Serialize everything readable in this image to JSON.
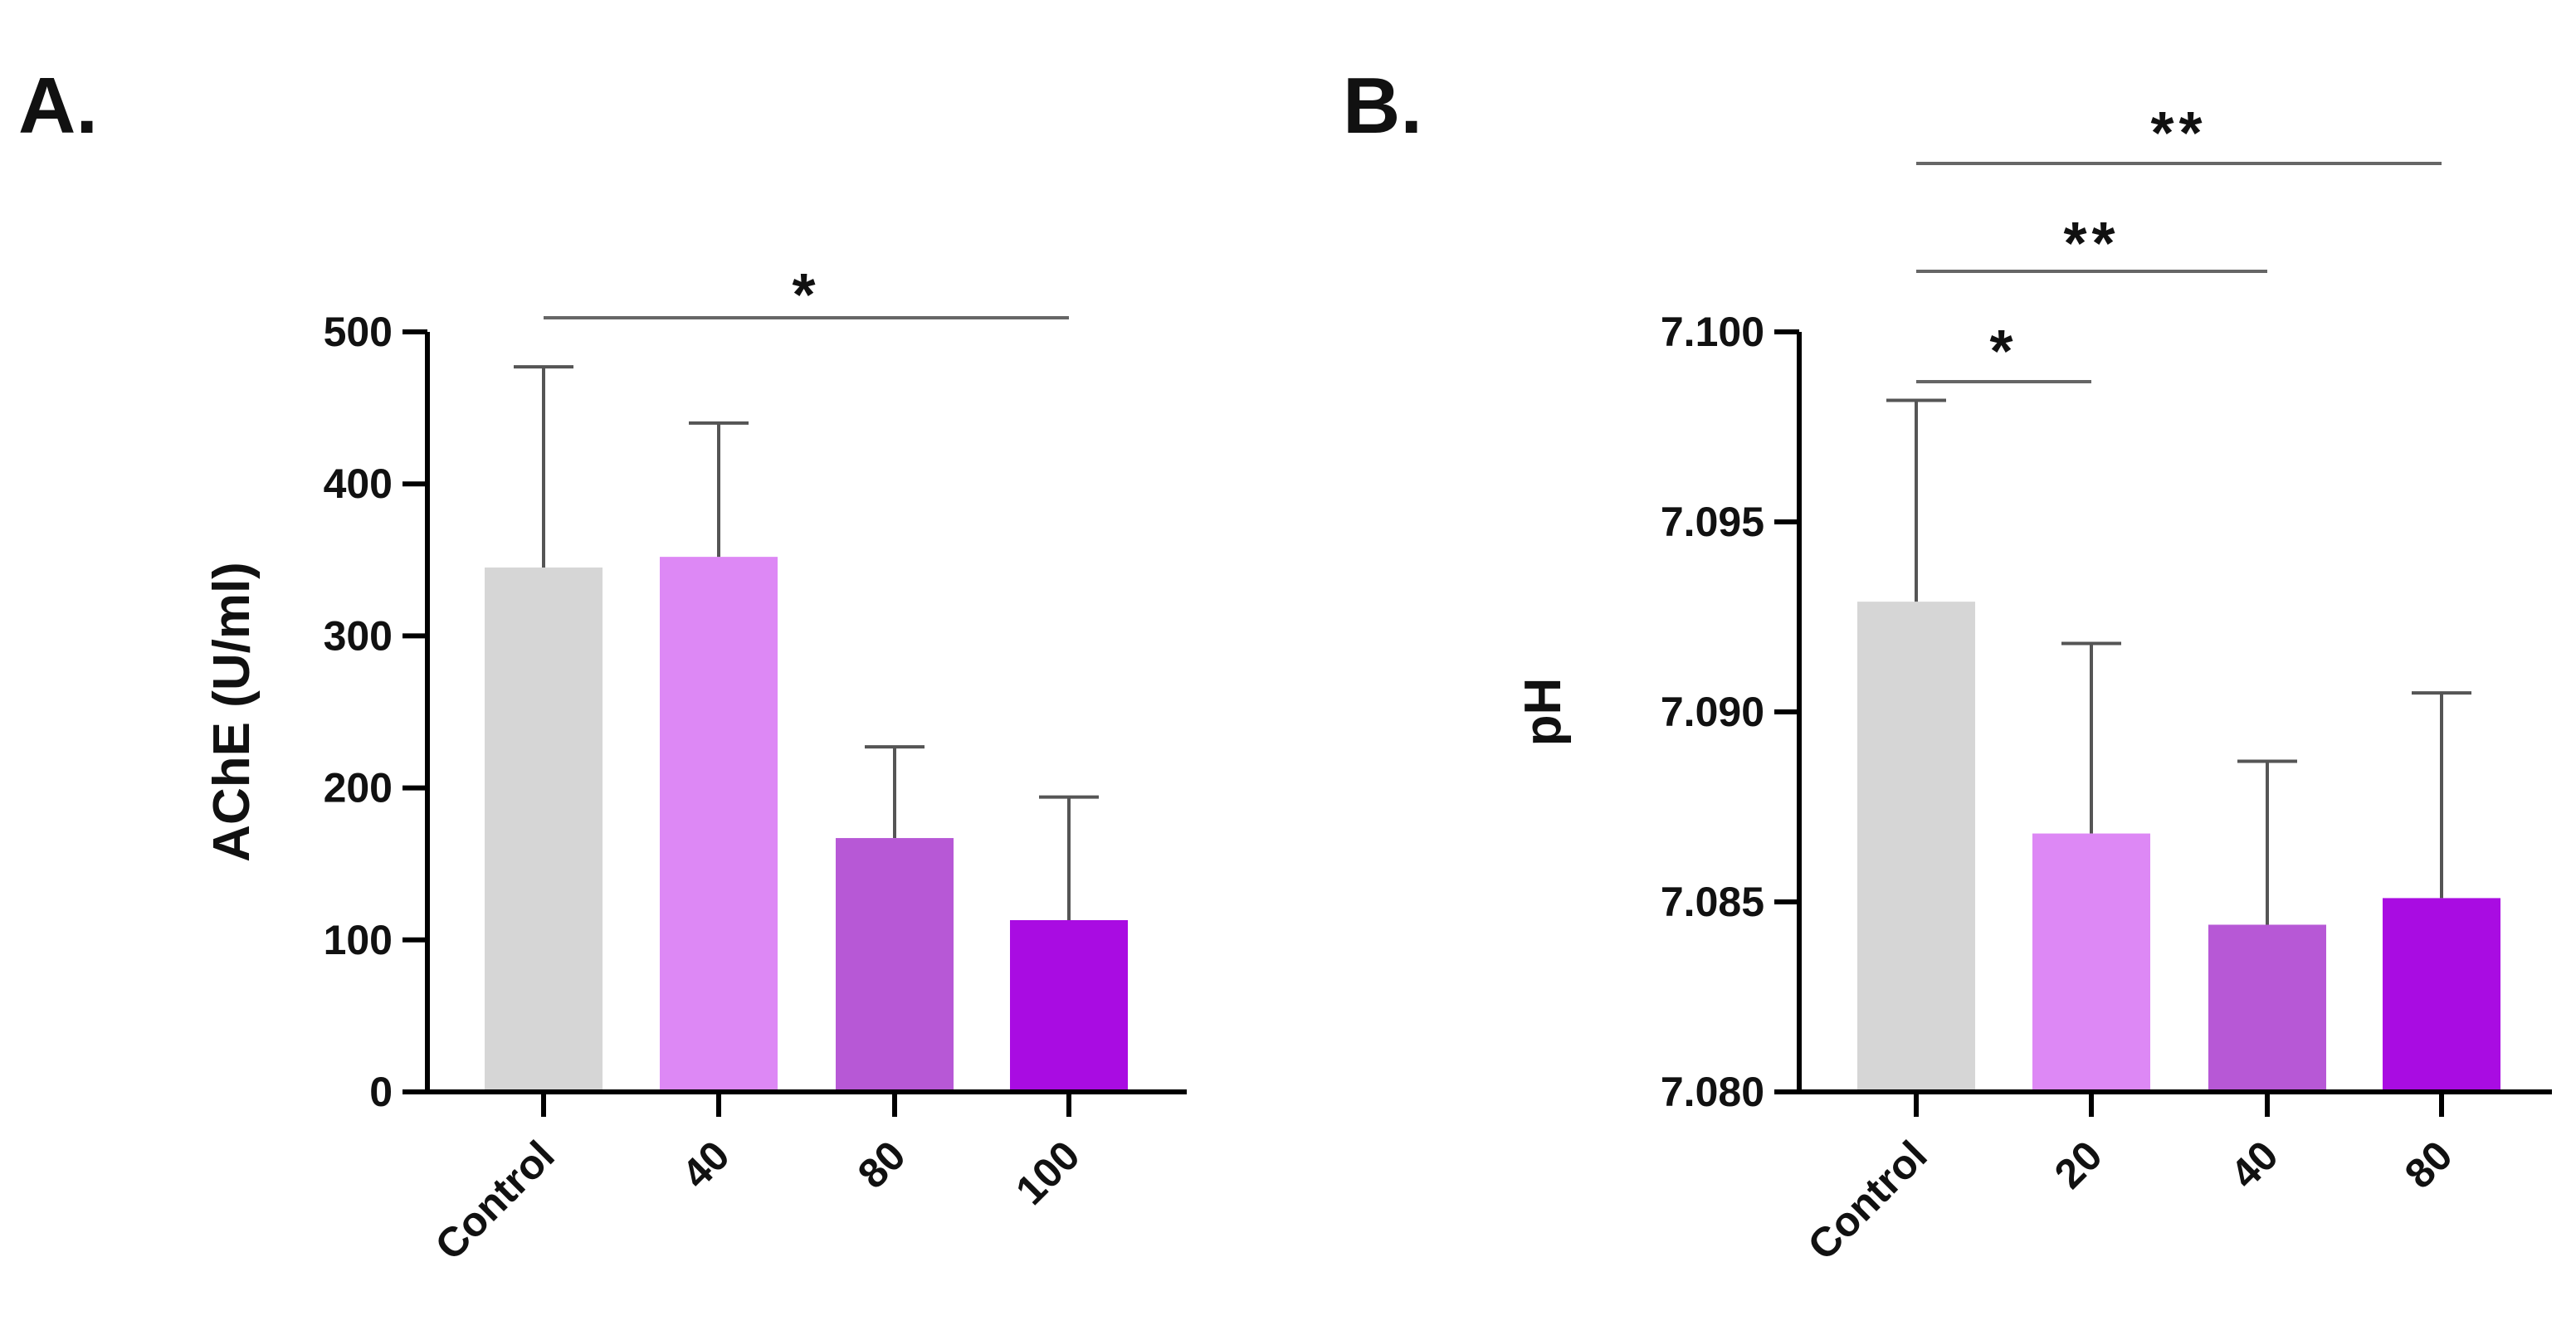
{
  "chart_data": [
    {
      "panel": "A.",
      "type": "bar",
      "categories": [
        "Control",
        "40",
        "80",
        "100"
      ],
      "values": [
        345,
        352,
        167,
        113
      ],
      "errors": [
        132,
        88,
        60,
        81
      ],
      "colors": [
        "#d6d6d6",
        "#dd88f5",
        "#b758d6",
        "#a90ce2"
      ],
      "title": "",
      "xlabel": "",
      "ylabel": "AChE (U/ml)",
      "ylim": [
        0,
        500
      ],
      "yticks": [
        0,
        100,
        200,
        300,
        400,
        500
      ],
      "ytick_labels": [
        "0",
        "100",
        "200",
        "300",
        "400",
        "500"
      ],
      "grid": false,
      "significance": [
        {
          "from": "Control",
          "to": "100",
          "label": "*"
        }
      ]
    },
    {
      "panel": "B.",
      "type": "bar",
      "categories": [
        "Control",
        "20",
        "40",
        "80"
      ],
      "values": [
        7.0929,
        7.0868,
        7.0844,
        7.0851
      ],
      "errors": [
        0.0053,
        0.005,
        0.0043,
        0.0054
      ],
      "colors": [
        "#d6d6d6",
        "#dd88f5",
        "#b758d6",
        "#a90ce2"
      ],
      "title": "",
      "xlabel": "",
      "ylabel": "pH",
      "ylim": [
        7.08,
        7.1
      ],
      "yticks": [
        7.08,
        7.085,
        7.09,
        7.095,
        7.1
      ],
      "ytick_labels": [
        "7.080",
        "7.085",
        "7.090",
        "7.095",
        "7.100"
      ],
      "grid": false,
      "significance": [
        {
          "from": "Control",
          "to": "20",
          "label": "*"
        },
        {
          "from": "Control",
          "to": "40",
          "label": "**"
        },
        {
          "from": "Control",
          "to": "80",
          "label": "**"
        }
      ]
    }
  ]
}
